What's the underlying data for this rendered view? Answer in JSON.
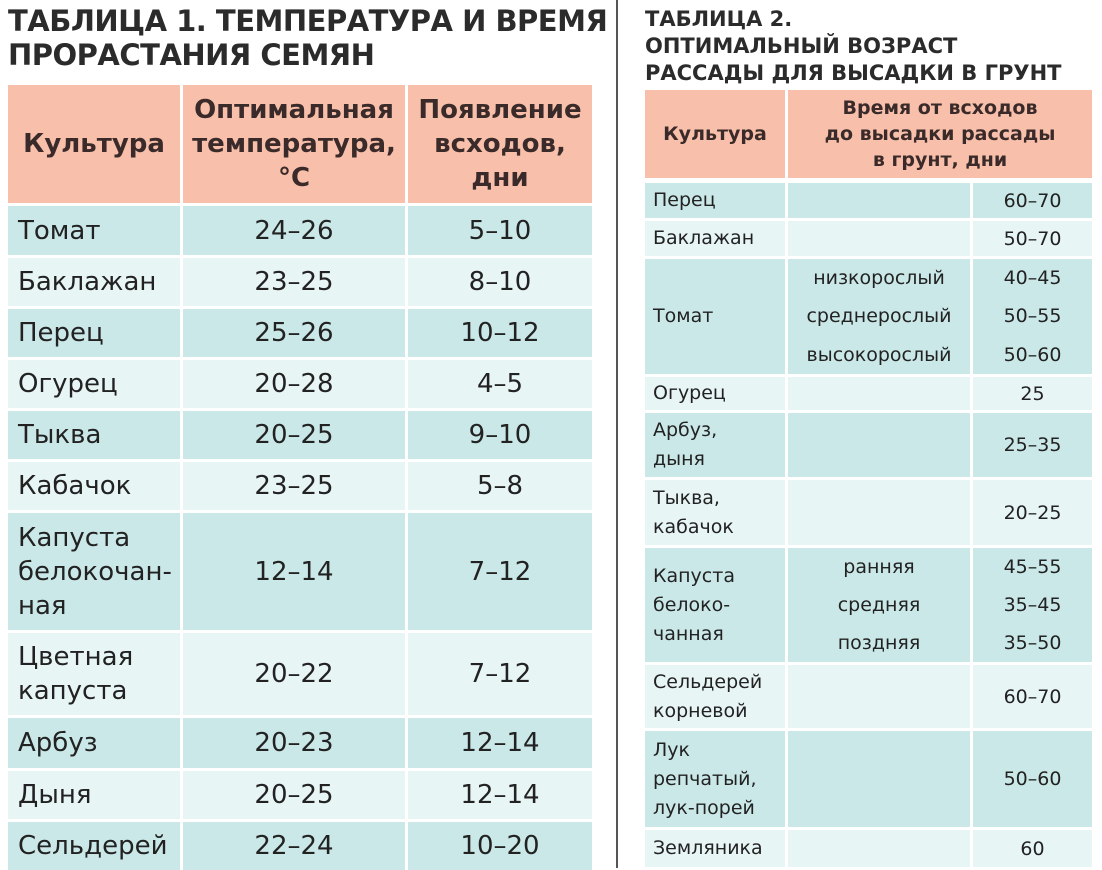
{
  "table1": {
    "title": "ТАБЛИЦА 1. ТЕМПЕРАТУРА И ВРЕМЯ\nПРОРАСТАНИЯ СЕМЯН",
    "headers": [
      "Культура",
      "Оптимальная\nтемпература,\n°С",
      "Появление\nвсходов,\nдни"
    ],
    "rows": [
      [
        "Томат",
        "24–26",
        "5–10"
      ],
      [
        "Баклажан",
        "23–25",
        "8–10"
      ],
      [
        "Перец",
        "25–26",
        "10–12"
      ],
      [
        "Огурец",
        "20–28",
        "4–5"
      ],
      [
        "Тыква",
        "20–25",
        "9–10"
      ],
      [
        "Кабачок",
        "23–25",
        "5–8"
      ],
      [
        "Капуста\nбелокочан-\nная",
        "12–14",
        "7–12"
      ],
      [
        "Цветная\nкапуста",
        "20–22",
        "7–12"
      ],
      [
        "Арбуз",
        "20–23",
        "12–14"
      ],
      [
        "Дыня",
        "20–25",
        "12–14"
      ],
      [
        "Сельдерей",
        "22–24",
        "10–20"
      ]
    ]
  },
  "table2": {
    "title": "ТАБЛИЦА 2.\nОПТИМАЛЬНЫЙ ВОЗРАСТ\nРАССАДЫ ДЛЯ ВЫСАДКИ В ГРУНТ",
    "headers": [
      "Культура",
      "Время от всходов\nдо высадки рассады\nв грунт, дни"
    ],
    "rows": [
      {
        "crop": "Перец",
        "days": [
          "60–70"
        ]
      },
      {
        "crop": "Баклажан",
        "days": [
          "50–70"
        ]
      },
      {
        "crop": "Томат",
        "varieties": [
          "низкорослый",
          "среднерослый",
          "высокорослый"
        ],
        "days": [
          "40–45",
          "50–55",
          "50–60"
        ]
      },
      {
        "crop": "Огурец",
        "days": [
          "25"
        ]
      },
      {
        "crop": "Арбуз,\nдыня",
        "days": [
          "25–35"
        ]
      },
      {
        "crop": "Тыква,\nкабачок",
        "days": [
          "20–25"
        ]
      },
      {
        "crop": "Капуста\nбелоко-\nчанная",
        "varieties": [
          "ранняя",
          "средняя",
          "поздняя"
        ],
        "days": [
          "45–55",
          "35–45",
          "35–50"
        ]
      },
      {
        "crop": "Сельдерей\nкорневой",
        "days": [
          "60–70"
        ]
      },
      {
        "crop": "Лук\nрепчатый,\nлук-порей",
        "days": [
          "50–60"
        ]
      },
      {
        "crop": "Земляника",
        "days": [
          "60"
        ]
      }
    ]
  }
}
